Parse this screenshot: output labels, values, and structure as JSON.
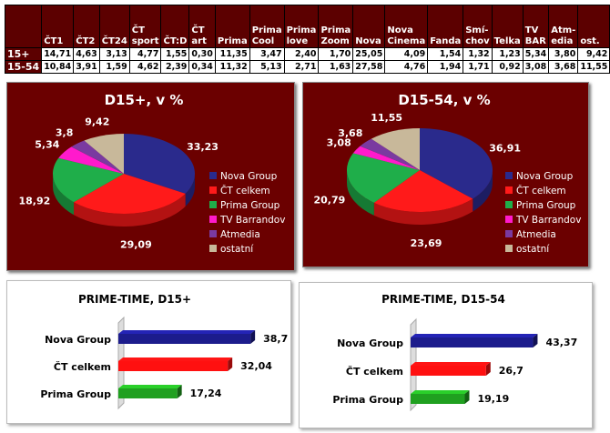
{
  "table": {
    "headers": [
      "",
      "ČT1",
      "ČT2",
      "ČT24",
      "ČT sport",
      "ČT:D",
      "ČT art",
      "Prima",
      "Prima Cool",
      "Prima love",
      "Prima Zoom",
      "Nova",
      "Nova Cinema",
      "Fanda",
      "Smí-chov",
      "Telka",
      "TV BAR",
      "Atm-edia",
      "ost."
    ],
    "rows": [
      {
        "label": "15+",
        "values": [
          "14,71",
          "4,63",
          "3,13",
          "4,77",
          "1,55",
          "0,30",
          "11,35",
          "3,47",
          "2,40",
          "1,70",
          "25,05",
          "4,09",
          "1,54",
          "1,32",
          "1,23",
          "5,34",
          "3,80",
          "9,42"
        ]
      },
      {
        "label": "15-54",
        "values": [
          "10,84",
          "3,91",
          "1,59",
          "4,62",
          "2,39",
          "0,34",
          "11,32",
          "5,13",
          "2,71",
          "1,63",
          "27,58",
          "4,76",
          "1,94",
          "1,71",
          "0,92",
          "3,08",
          "3,68",
          "11,55"
        ]
      }
    ]
  },
  "chart_data": [
    {
      "type": "pie",
      "title": "D15+, v %",
      "legend": [
        "Nova Group",
        "ČT celkem",
        "Prima Group",
        "TV Barrandov",
        "Atmedia",
        "ostatní"
      ],
      "values": [
        33.23,
        29.09,
        18.92,
        5.34,
        3.8,
        9.42
      ],
      "labels": [
        "33,23",
        "29,09",
        "18,92",
        "5,34",
        "3,8",
        "9,42"
      ],
      "colors": [
        "#2a2a8c",
        "#ff1a1a",
        "#1fae4a",
        "#ff1acc",
        "#7a3aa0",
        "#c8b89a"
      ],
      "legend_position": "right"
    },
    {
      "type": "pie",
      "title": "D15-54, v %",
      "legend": [
        "Nova Group",
        "ČT celkem",
        "Prima Group",
        "TV Barrandov",
        "Atmedia",
        "ostatní"
      ],
      "values": [
        36.91,
        23.69,
        20.79,
        3.08,
        3.68,
        11.55
      ],
      "labels": [
        "36,91",
        "23,69",
        "20,79",
        "3,08",
        "3,68",
        "11,55"
      ],
      "colors": [
        "#2a2a8c",
        "#ff1a1a",
        "#1fae4a",
        "#ff1acc",
        "#7a3aa0",
        "#c8b89a"
      ],
      "legend_position": "right"
    },
    {
      "type": "bar",
      "title": "PRIME-TIME, D15+",
      "categories": [
        "Nova Group",
        "ČT celkem",
        "Prima Group"
      ],
      "values": [
        38.7,
        32.04,
        17.24
      ],
      "labels": [
        "38,7",
        "32,04",
        "17,24"
      ],
      "colors": [
        "#1c1c8c",
        "#ff1010",
        "#20a020"
      ]
    },
    {
      "type": "bar",
      "title": "PRIME-TIME, D15-54",
      "categories": [
        "Nova Group",
        "ČT celkem",
        "Prima Group"
      ],
      "values": [
        43.37,
        26.7,
        19.19
      ],
      "labels": [
        "43,37",
        "26,7",
        "19,19"
      ],
      "colors": [
        "#1c1c8c",
        "#ff1010",
        "#20a020"
      ]
    }
  ]
}
